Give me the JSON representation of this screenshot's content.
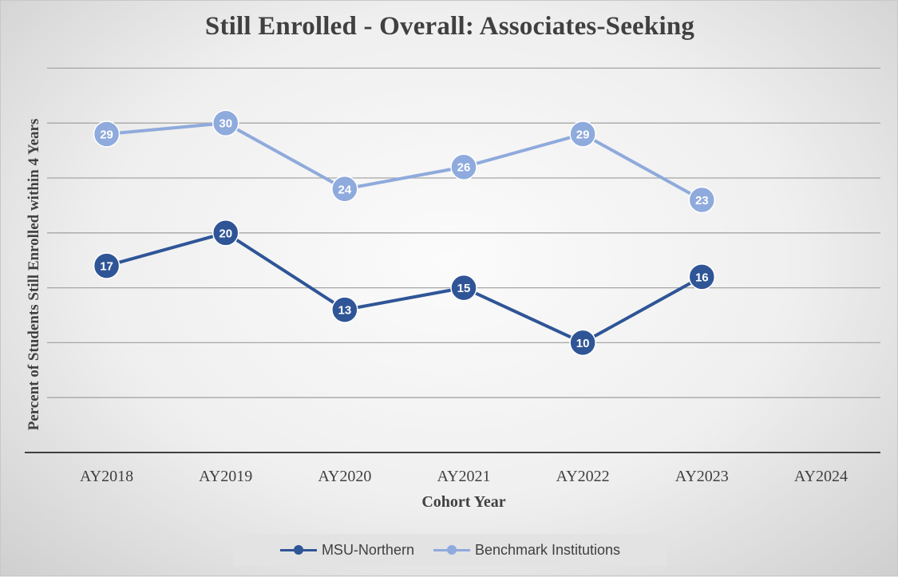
{
  "chart_data": {
    "type": "line",
    "title": "Still Enrolled - Overall: Associates-Seeking",
    "xlabel": "Cohort Year",
    "ylabel": "Percent of  Students Still Enrolled within 4 Years",
    "categories": [
      "AY2018",
      "AY2019",
      "AY2020",
      "AY2021",
      "AY2022",
      "AY2023",
      "AY2024"
    ],
    "ylim": [
      0,
      35
    ],
    "ytick_step": 5,
    "grid": true,
    "legend_position": "bottom",
    "series": [
      {
        "name": "MSU-Northern",
        "color": "#2f5597",
        "values": [
          17,
          20,
          13,
          15,
          10,
          16,
          null
        ]
      },
      {
        "name": "Benchmark Institutions",
        "color": "#8faadc",
        "values": [
          29,
          30,
          24,
          26,
          29,
          23,
          null
        ]
      }
    ]
  }
}
